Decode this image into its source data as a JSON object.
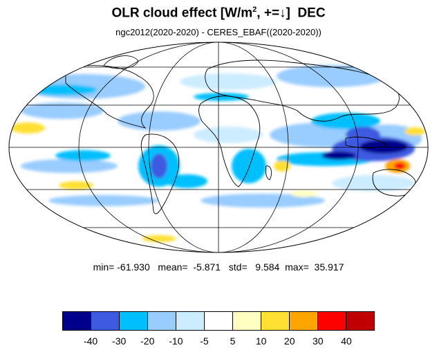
{
  "title": {
    "main": "OLR cloud effect [W/m",
    "sup": "2",
    "rest": ", +=↓]  DEC"
  },
  "subtitle": "ngc2012(2020-2020) - CERES_EBAF((2020-2020))",
  "stats": {
    "min_label": "min=",
    "min": "-61.930",
    "mean_label": "mean=",
    "mean": "-5.871",
    "std_label": "std=",
    "std": "9.584",
    "max_label": "max=",
    "max": "35.917"
  },
  "colorbar": {
    "colors": [
      "#00008c",
      "#3d5ae0",
      "#00bfff",
      "#99ccff",
      "#ccecff",
      "#ffffff",
      "#ffffc2",
      "#ffe033",
      "#ffa500",
      "#ff0000",
      "#c00000"
    ],
    "labels": [
      "-40",
      "-30",
      "-20",
      "-10",
      "-5",
      "5",
      "10",
      "20",
      "30",
      "40"
    ]
  },
  "map": {
    "projection": "Mollweide",
    "background": "#ffffff",
    "grid": true
  }
}
